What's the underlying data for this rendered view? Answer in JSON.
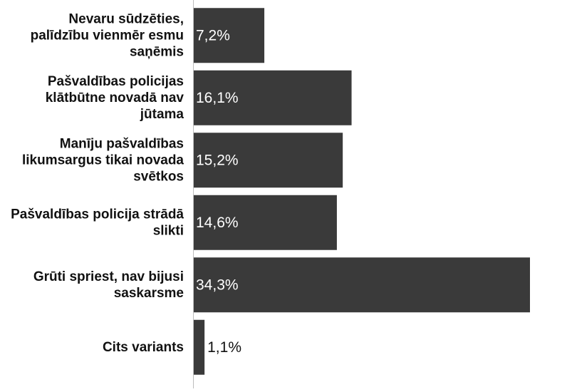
{
  "chart_data": {
    "type": "bar",
    "orientation": "horizontal",
    "categories": [
      [
        "Nevaru sūdzēties,",
        "palīdzību vienmēr esmu",
        "saņēmis"
      ],
      [
        "Pašvaldības policijas",
        "klātbūtne novadā nav",
        "jūtama"
      ],
      [
        "Manīju pašvaldības",
        "likumsargus tikai novada",
        "svētkos"
      ],
      [
        "Pašvaldības policija strādā",
        "slikti"
      ],
      [
        "Grūti spriest, nav bijusi",
        "saskarsme"
      ],
      [
        "Cits variants"
      ]
    ],
    "values": [
      7.2,
      16.1,
      15.2,
      14.6,
      34.3,
      1.1
    ],
    "value_labels": [
      "7,2%",
      "16,1%",
      "15,2%",
      "14,6%",
      "34,3%",
      "1,1%"
    ],
    "xlim": [
      0,
      34.3
    ],
    "bar_color": "#3a3a3a",
    "label_color": "#ffffff",
    "outside_label_color": "#111111",
    "category_label_color": "#111111",
    "axis_color": "#bdbdbd",
    "grid": false,
    "legend": "none"
  }
}
